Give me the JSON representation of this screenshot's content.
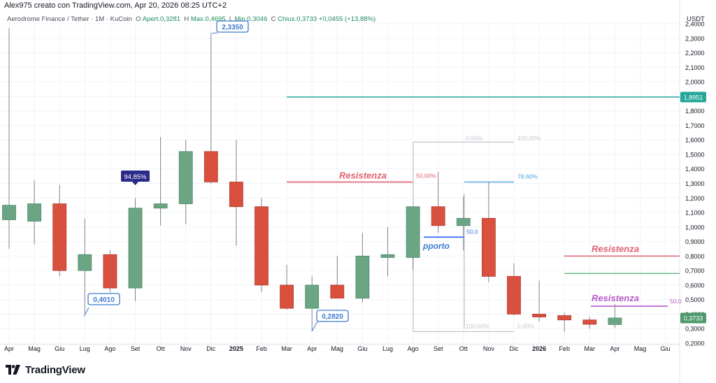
{
  "header": {
    "created_by": "Alex975 creato con TradingView.com, Apr 20, 2026 08:25 UTC+2",
    "symbol": "Aerodrome Finance / Tether · 1M · KuCoin",
    "open_label": "O",
    "open": "Apert.0,3281",
    "high_label": "H",
    "high": "Max.0,4695",
    "low_label": "L",
    "low": "Min.0,3046",
    "close_label": "C",
    "close": "Chius.0,3733",
    "change": "+0,0455 (+13,88%)",
    "currency": "USDT"
  },
  "footer": {
    "brand": "TradingView",
    "logo_icon": "tradingview-logo-icon"
  },
  "colors": {
    "up": "#6ba583",
    "down": "#d9503f",
    "up_border": "#4e8a67",
    "down_border": "#b33a2b",
    "grid": "#f0f3fa",
    "axis_text": "#131722",
    "teal": "#26a69a",
    "fib": "#b2b5be",
    "resist_red": "#e0606e",
    "purple": "#b85cc7",
    "blue": "#2962ff",
    "label_blue": "#3d7bd4"
  },
  "chart_data": {
    "type": "candlestick",
    "title": "Aerodrome Finance / Tether · 1M · KuCoin",
    "xlabel": "",
    "ylabel": "USDT",
    "ylim": [
      0.2,
      2.4
    ],
    "grid": true,
    "y_ticks": [
      "2,4000",
      "2,3000",
      "2,2000",
      "2,1000",
      "2,0000",
      "1,9000",
      "1,8000",
      "1,7000",
      "1,6000",
      "1,5000",
      "1,4000",
      "1,3000",
      "1,2000",
      "1,1000",
      "1,0000",
      "0,9000",
      "0,8000",
      "0,7000",
      "0,6000",
      "0,5000",
      "0,4000",
      "0,3000",
      "0,2000"
    ],
    "y_tick_values": [
      2.4,
      2.3,
      2.2,
      2.1,
      2.0,
      1.9,
      1.8,
      1.7,
      1.6,
      1.5,
      1.4,
      1.3,
      1.2,
      1.1,
      1.0,
      0.9,
      0.8,
      0.7,
      0.6,
      0.5,
      0.4,
      0.3,
      0.2
    ],
    "x_labels": [
      "Apr",
      "Mag",
      "Giu",
      "Lug",
      "Ago",
      "Set",
      "Ott",
      "Nov",
      "Dic",
      "2025",
      "Feb",
      "Mar",
      "Apr",
      "Mag",
      "Giu",
      "Lug",
      "Ago",
      "Set",
      "Ott",
      "Nov",
      "Dic",
      "2026",
      "Feb",
      "Mar",
      "Apr",
      "Mag",
      "Giu"
    ],
    "bold_x_labels": [
      "2025",
      "2026"
    ],
    "candles": [
      {
        "o": 1.05,
        "h": 2.37,
        "l": 0.85,
        "c": 1.15
      },
      {
        "o": 1.04,
        "h": 1.32,
        "l": 0.88,
        "c": 1.16
      },
      {
        "o": 1.16,
        "h": 1.29,
        "l": 0.66,
        "c": 0.7
      },
      {
        "o": 0.7,
        "h": 1.06,
        "l": 0.4,
        "c": 0.81
      },
      {
        "o": 0.81,
        "h": 0.84,
        "l": 0.55,
        "c": 0.58
      },
      {
        "o": 0.58,
        "h": 1.2,
        "l": 0.49,
        "c": 1.13
      },
      {
        "o": 1.13,
        "h": 1.62,
        "l": 1.01,
        "c": 1.16
      },
      {
        "o": 1.16,
        "h": 1.6,
        "l": 1.02,
        "c": 1.52
      },
      {
        "o": 1.52,
        "h": 2.335,
        "l": 1.3,
        "c": 1.31
      },
      {
        "o": 1.31,
        "h": 1.6,
        "l": 0.87,
        "c": 1.14
      },
      {
        "o": 1.14,
        "h": 1.2,
        "l": 0.55,
        "c": 0.6
      },
      {
        "o": 0.6,
        "h": 0.74,
        "l": 0.43,
        "c": 0.44
      },
      {
        "o": 0.44,
        "h": 0.66,
        "l": 0.282,
        "c": 0.6
      },
      {
        "o": 0.6,
        "h": 0.8,
        "l": 0.51,
        "c": 0.51
      },
      {
        "o": 0.51,
        "h": 0.96,
        "l": 0.48,
        "c": 0.8
      },
      {
        "o": 0.79,
        "h": 1.0,
        "l": 0.66,
        "c": 0.81
      },
      {
        "o": 0.79,
        "h": 1.14,
        "l": 0.71,
        "c": 1.14
      },
      {
        "o": 1.14,
        "h": 1.38,
        "l": 0.96,
        "c": 1.01
      },
      {
        "o": 1.01,
        "h": 1.21,
        "l": 0.84,
        "c": 1.06
      },
      {
        "o": 1.06,
        "h": 1.31,
        "l": 0.62,
        "c": 0.66
      },
      {
        "o": 0.66,
        "h": 0.75,
        "l": 0.39,
        "c": 0.4
      },
      {
        "o": 0.4,
        "h": 0.63,
        "l": 0.35,
        "c": 0.38
      },
      {
        "o": 0.39,
        "h": 0.41,
        "l": 0.28,
        "c": 0.36
      },
      {
        "o": 0.36,
        "h": 0.38,
        "l": 0.3,
        "c": 0.33
      },
      {
        "o": 0.3281,
        "h": 0.4695,
        "l": 0.3046,
        "c": 0.3733
      }
    ],
    "annotations": {
      "high_callout": "2,3350",
      "low_callout_1": "0,4010",
      "low_callout_2": "0,2820",
      "pct_badge": "94,85%",
      "resistance_1": "Resistenza",
      "resistance_2": "Resistenza",
      "resistance_3": "Resistenza",
      "support": "pporto",
      "fib_a_0": "0,00%",
      "fib_a_100": "100,00%",
      "fib_a_50": "50,00%",
      "fib_b_786": "78,60%",
      "fib_b_50": "50,0",
      "fib_b_100": "100,00%",
      "fib_b_0": "0,00%",
      "purple_50": "50,0"
    },
    "levels": {
      "teal_line": 1.8951,
      "teal_label": "1,8951",
      "last_price": 0.3733,
      "last_label": "0,3733"
    }
  }
}
